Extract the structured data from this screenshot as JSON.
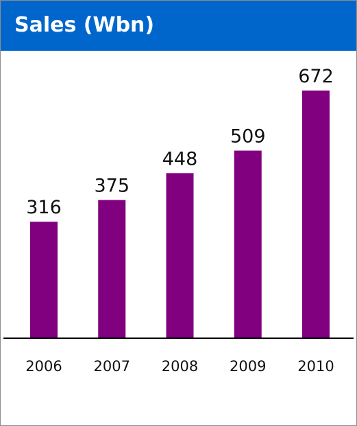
{
  "chart_data": {
    "type": "bar",
    "title": "Sales (Wbn)",
    "categories": [
      "2006",
      "2007",
      "2008",
      "2009",
      "2010"
    ],
    "values": [
      316,
      375,
      448,
      509,
      672
    ],
    "xlabel": "",
    "ylabel": "",
    "ylim": [
      0,
      672
    ],
    "grid": false,
    "legend": "none",
    "data_labels": true
  },
  "colors": {
    "header": "#0066cc",
    "bar": "#800080",
    "title_text": "#ffffff",
    "baseline": "#000000"
  }
}
